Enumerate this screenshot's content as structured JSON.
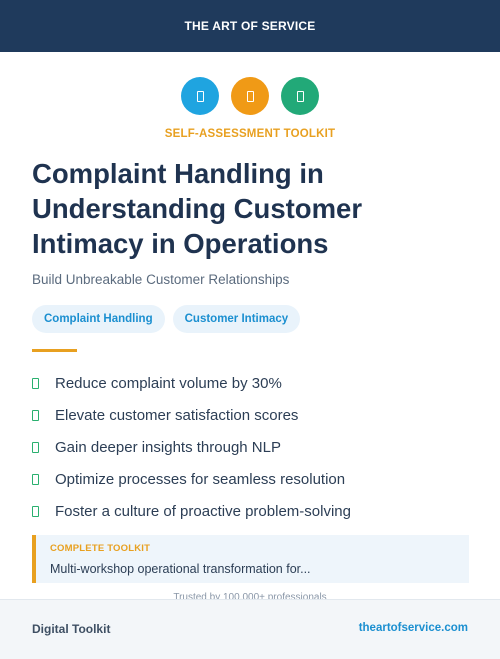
{
  "header": {
    "brand": "THE ART OF SERVICE"
  },
  "icons": [
    {
      "name": "document-icon",
      "color": "#1fa4e0"
    },
    {
      "name": "document-icon",
      "color": "#f09a16"
    },
    {
      "name": "document-icon",
      "color": "#22a978"
    }
  ],
  "kicker": "SELF-ASSESSMENT TOOLKIT",
  "title": "Complaint Handling in Understanding Customer Intimacy in Operations",
  "subtitle": "Build Unbreakable Customer Relationships",
  "tags": [
    "Complaint Handling",
    "Customer Intimacy"
  ],
  "benefits": [
    "Reduce complaint volume by 30%",
    "Elevate customer satisfaction scores",
    "Gain deeper insights through NLP",
    "Optimize processes for seamless resolution",
    "Foster a culture of proactive problem-solving"
  ],
  "callout": {
    "label": "COMPLETE TOOLKIT",
    "text": "Multi-workshop operational transformation for..."
  },
  "trusted": "Trusted by 100,000+ professionals",
  "footer": {
    "left": "Digital Toolkit",
    "right": "theartofservice.com"
  },
  "colors": {
    "navy": "#1f3a5c",
    "accent_orange": "#e8a020",
    "link_blue": "#1b8fd0",
    "check_green": "#2ab06f"
  }
}
